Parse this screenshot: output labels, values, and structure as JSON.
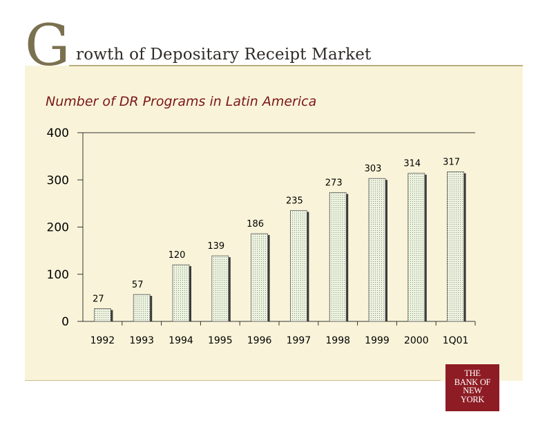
{
  "header": {
    "title_initial": "G",
    "title_rest": "rowth of Depositary Receipt Market"
  },
  "chart_data": {
    "type": "bar",
    "title": "Number of DR Programs in Latin America",
    "categories": [
      "1992",
      "1993",
      "1994",
      "1995",
      "1996",
      "1997",
      "1998",
      "1999",
      "2000",
      "1Q01"
    ],
    "values": [
      27,
      57,
      120,
      139,
      186,
      235,
      273,
      303,
      314,
      317
    ],
    "ylim": [
      0,
      400
    ],
    "yticks": [
      0,
      100,
      200,
      300,
      400
    ],
    "xlabel": "",
    "ylabel": "",
    "grid": "top-border-only",
    "legend": "none",
    "bar_color": "#d7e0c4",
    "bar_border": "#2b2b2b"
  },
  "logo": {
    "lines": [
      "THE",
      "BANK OF",
      "NEW",
      "YORK"
    ],
    "color": "#8e1c24"
  }
}
